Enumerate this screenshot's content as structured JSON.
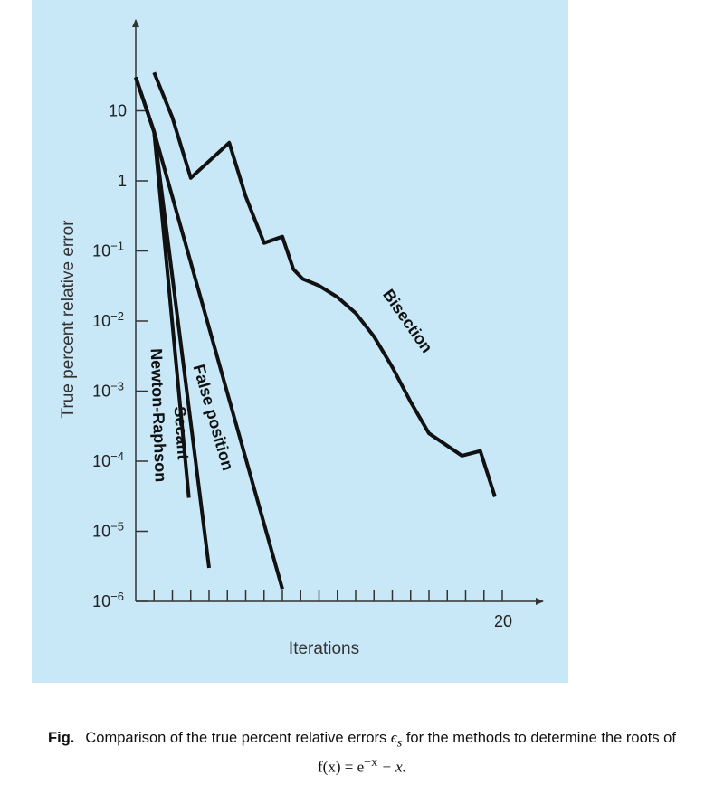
{
  "caption": {
    "label": "Fig.",
    "text_pre": "Comparison of the true percent relative errors",
    "epsilon": "ϵ",
    "epsilon_sub": "s",
    "text_post": "for the methods to determine the roots of",
    "formula_lhs": "f(x) = e",
    "formula_exp": "−x",
    "formula_rhs": " − x."
  },
  "chart_data": {
    "type": "line",
    "title": "",
    "xlabel": "Iterations",
    "ylabel": "True percent relative error",
    "yscale": "log",
    "xlim": [
      0,
      20
    ],
    "ylim": [
      1e-06,
      100
    ],
    "x_tick_values": [
      1,
      2,
      3,
      4,
      5,
      6,
      7,
      8,
      9,
      10,
      11,
      12,
      13,
      14,
      15,
      16,
      17,
      18,
      19,
      20
    ],
    "x_tick_labels": [
      {
        "value": 20,
        "label": "20"
      }
    ],
    "y_ticks": [
      {
        "value": 10,
        "base": "10",
        "exp": ""
      },
      {
        "value": 1,
        "base": "1",
        "exp": ""
      },
      {
        "value": 0.1,
        "base": "10",
        "exp": "−1"
      },
      {
        "value": 0.01,
        "base": "10",
        "exp": "−2"
      },
      {
        "value": 0.001,
        "base": "10",
        "exp": "−3"
      },
      {
        "value": 0.0001,
        "base": "10",
        "exp": "−4"
      },
      {
        "value": 1e-05,
        "base": "10",
        "exp": "−5"
      },
      {
        "value": 1e-06,
        "base": "10",
        "exp": "−6"
      }
    ],
    "series": [
      {
        "name": "Newton-Raphson",
        "points": [
          [
            0,
            30
          ],
          [
            1,
            5
          ],
          [
            2.9,
            3e-05
          ]
        ]
      },
      {
        "name": "Secant",
        "points": [
          [
            0,
            30
          ],
          [
            1,
            5
          ],
          [
            4,
            3e-06
          ]
        ]
      },
      {
        "name": "False position",
        "points": [
          [
            0,
            30
          ],
          [
            1,
            5
          ],
          [
            8,
            1.5e-06
          ]
        ]
      },
      {
        "name": "Bisection",
        "points": [
          [
            1,
            35
          ],
          [
            2,
            8
          ],
          [
            3,
            1.1
          ],
          [
            5.1,
            3.5
          ],
          [
            6,
            0.6
          ],
          [
            7,
            0.13
          ],
          [
            8,
            0.16
          ],
          [
            8.6,
            0.055
          ],
          [
            9.1,
            0.04
          ],
          [
            10,
            0.032
          ],
          [
            11,
            0.022
          ],
          [
            12,
            0.013
          ],
          [
            13,
            0.006
          ],
          [
            14,
            0.0022
          ],
          [
            15,
            0.0007
          ],
          [
            16,
            0.00025
          ],
          [
            17.8,
            0.00012
          ],
          [
            18.8,
            0.00014
          ],
          [
            19.6,
            3.1e-05
          ]
        ]
      }
    ]
  }
}
